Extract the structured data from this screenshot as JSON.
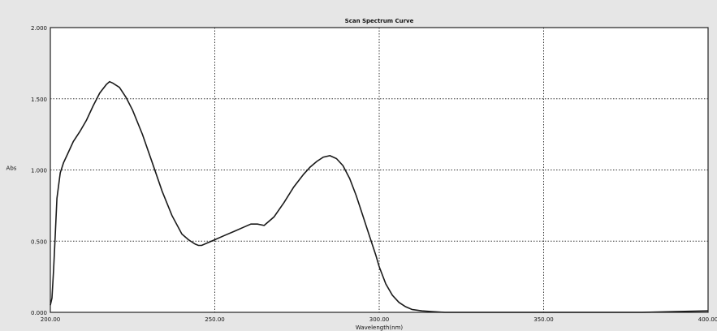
{
  "chart_data": {
    "type": "line",
    "title": "Scan Spectrum Curve",
    "xlabel": "Wavelength(nm)",
    "ylabel": "Abs",
    "xlim": [
      200,
      400
    ],
    "ylim": [
      0,
      2
    ],
    "x_ticks": [
      200,
      250,
      300,
      350,
      400
    ],
    "x_tick_labels": [
      "200.00",
      "250.00",
      "300.00",
      "350.00",
      "400.00"
    ],
    "y_ticks": [
      0.0,
      0.5,
      1.0,
      1.5,
      2.0
    ],
    "y_tick_labels": [
      "0.000",
      "0.500",
      "1.000",
      "1.500",
      "2.000"
    ],
    "grid": true,
    "line_color": "#1a1a1a",
    "series": [
      {
        "x": [
          200,
          200.5,
          201,
          201.5,
          202,
          203,
          204,
          205,
          207,
          209,
          211,
          213,
          215,
          217,
          218,
          219,
          221,
          223,
          225,
          228,
          231,
          234,
          237,
          240,
          242,
          244,
          245,
          246,
          248,
          250,
          253,
          256,
          259,
          261,
          263,
          265,
          268,
          271,
          274,
          277,
          279,
          281,
          283,
          285,
          287,
          289,
          291,
          293,
          295,
          297,
          299,
          300,
          302,
          304,
          306,
          308,
          310,
          313,
          316,
          320,
          330,
          340,
          350,
          360,
          370,
          380,
          390,
          400
        ],
        "y": [
          0.05,
          0.1,
          0.3,
          0.55,
          0.8,
          0.98,
          1.05,
          1.1,
          1.2,
          1.27,
          1.35,
          1.45,
          1.54,
          1.6,
          1.62,
          1.61,
          1.58,
          1.51,
          1.42,
          1.25,
          1.05,
          0.85,
          0.68,
          0.55,
          0.51,
          0.48,
          0.47,
          0.47,
          0.49,
          0.51,
          0.54,
          0.57,
          0.6,
          0.62,
          0.62,
          0.61,
          0.67,
          0.77,
          0.88,
          0.97,
          1.02,
          1.06,
          1.09,
          1.1,
          1.08,
          1.03,
          0.94,
          0.82,
          0.68,
          0.54,
          0.4,
          0.32,
          0.2,
          0.12,
          0.07,
          0.04,
          0.02,
          0.01,
          0.005,
          0.0,
          0.0,
          0.0,
          0.0,
          0.0,
          0.0,
          0.0,
          0.005,
          0.01
        ]
      }
    ]
  }
}
